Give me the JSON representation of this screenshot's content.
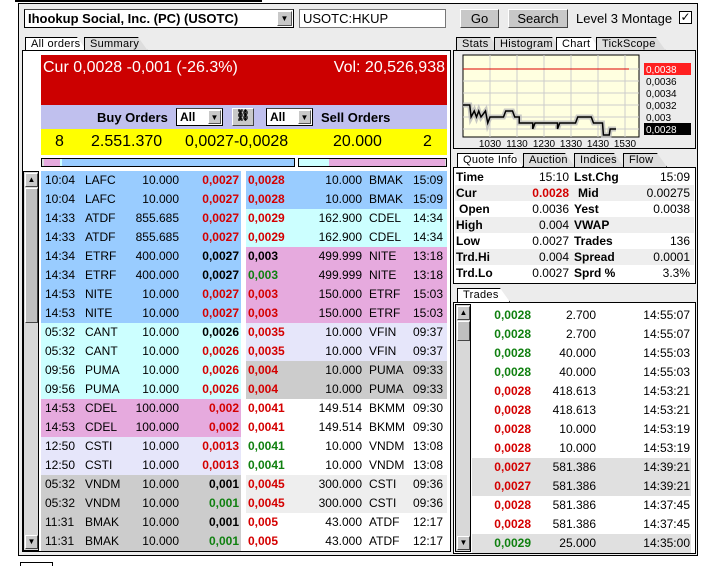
{
  "symbol_select": {
    "value": "Ihookup Social, Inc. (PC) (USOTC)"
  },
  "symbol_input": {
    "value": "USOTC:HKUP"
  },
  "buttons": {
    "go": "Go",
    "search": "Search"
  },
  "level3": {
    "label": "Level 3 Montage",
    "checked": true
  },
  "left_tabs": [
    "All orders",
    "Summary"
  ],
  "header": {
    "cur": "Cur 0,0028 -0,001 (-26.3%)",
    "vol": "Vol: 20,526,938"
  },
  "filters": {
    "buy_label": "Buy Orders",
    "buy_value": "All",
    "sell_value": "All",
    "sell_label": "Sell Orders",
    "link_icon": "chain-link-icon"
  },
  "summary": {
    "buy_count": "8",
    "buy_size": "2.551.370",
    "bid_ask": "0,0027-0,0028",
    "sell_size": "20.000",
    "sell_count": "2"
  },
  "colors": {
    "blue": "#99ccff",
    "cyan": "#ccffff",
    "pink": "#e6aade",
    "lavender": "#e6e6fa",
    "gray": "#cccccc",
    "lightgray": "#eeeeee",
    "white": "#ffffff",
    "red": "#d40000",
    "green": "#108010",
    "header_red": "#cc0000",
    "yellow": "#ffff00"
  },
  "buy_orders": [
    {
      "time": "10:04",
      "mm": "LAFC",
      "size": "10.000",
      "price": "0,0027",
      "pc": "red",
      "bg": "blue"
    },
    {
      "time": "10:04",
      "mm": "LAFC",
      "size": "10.000",
      "price": "0,0027",
      "pc": "red",
      "bg": "blue"
    },
    {
      "time": "14:33",
      "mm": "ATDF",
      "size": "855.685",
      "price": "0,0027",
      "pc": "red",
      "bg": "blue"
    },
    {
      "time": "14:33",
      "mm": "ATDF",
      "size": "855.685",
      "price": "0,0027",
      "pc": "red",
      "bg": "blue"
    },
    {
      "time": "14:34",
      "mm": "ETRF",
      "size": "400.000",
      "price": "0,0027",
      "pc": "blk",
      "bg": "blue"
    },
    {
      "time": "14:34",
      "mm": "ETRF",
      "size": "400.000",
      "price": "0,0027",
      "pc": "blk",
      "bg": "blue"
    },
    {
      "time": "14:53",
      "mm": "NITE",
      "size": "10.000",
      "price": "0,0027",
      "pc": "red",
      "bg": "blue"
    },
    {
      "time": "14:53",
      "mm": "NITE",
      "size": "10.000",
      "price": "0,0027",
      "pc": "red",
      "bg": "blue"
    },
    {
      "time": "05:32",
      "mm": "CANT",
      "size": "10.000",
      "price": "0,0026",
      "pc": "blk",
      "bg": "cyan"
    },
    {
      "time": "05:32",
      "mm": "CANT",
      "size": "10.000",
      "price": "0,0026",
      "pc": "red",
      "bg": "cyan"
    },
    {
      "time": "09:56",
      "mm": "PUMA",
      "size": "10.000",
      "price": "0,0026",
      "pc": "red",
      "bg": "cyan"
    },
    {
      "time": "09:56",
      "mm": "PUMA",
      "size": "10.000",
      "price": "0,0026",
      "pc": "red",
      "bg": "cyan"
    },
    {
      "time": "14:53",
      "mm": "CDEL",
      "size": "100.000",
      "price": "0,002",
      "pc": "red",
      "bg": "pink"
    },
    {
      "time": "14:53",
      "mm": "CDEL",
      "size": "100.000",
      "price": "0,002",
      "pc": "red",
      "bg": "pink"
    },
    {
      "time": "12:50",
      "mm": "CSTI",
      "size": "10.000",
      "price": "0,0013",
      "pc": "red",
      "bg": "lavender"
    },
    {
      "time": "12:50",
      "mm": "CSTI",
      "size": "10.000",
      "price": "0,0013",
      "pc": "red",
      "bg": "lavender"
    },
    {
      "time": "05:32",
      "mm": "VNDM",
      "size": "10.000",
      "price": "0,001",
      "pc": "blk",
      "bg": "gray"
    },
    {
      "time": "05:32",
      "mm": "VNDM",
      "size": "10.000",
      "price": "0,001",
      "pc": "grn",
      "bg": "gray"
    },
    {
      "time": "11:31",
      "mm": "BMAK",
      "size": "10.000",
      "price": "0,001",
      "pc": "blk",
      "bg": "gray"
    },
    {
      "time": "11:31",
      "mm": "BMAK",
      "size": "10.000",
      "price": "0,001",
      "pc": "grn",
      "bg": "gray"
    }
  ],
  "sell_orders": [
    {
      "price": "0,0028",
      "pc": "red",
      "size": "10.000",
      "mm": "BMAK",
      "time": "15:09",
      "bg": "blue"
    },
    {
      "price": "0,0028",
      "pc": "red",
      "size": "10.000",
      "mm": "BMAK",
      "time": "15:09",
      "bg": "blue"
    },
    {
      "price": "0,0029",
      "pc": "red",
      "size": "162.900",
      "mm": "CDEL",
      "time": "14:34",
      "bg": "cyan"
    },
    {
      "price": "0,0029",
      "pc": "red",
      "size": "162.900",
      "mm": "CDEL",
      "time": "14:34",
      "bg": "cyan"
    },
    {
      "price": "0,003",
      "pc": "blk",
      "size": "499.999",
      "mm": "NITE",
      "time": "13:18",
      "bg": "pink"
    },
    {
      "price": "0,003",
      "pc": "grn",
      "size": "499.999",
      "mm": "NITE",
      "time": "13:18",
      "bg": "pink"
    },
    {
      "price": "0,003",
      "pc": "red",
      "size": "150.000",
      "mm": "ETRF",
      "time": "15:03",
      "bg": "pink"
    },
    {
      "price": "0,003",
      "pc": "red",
      "size": "150.000",
      "mm": "ETRF",
      "time": "15:03",
      "bg": "pink"
    },
    {
      "price": "0,0035",
      "pc": "red",
      "size": "10.000",
      "mm": "VFIN",
      "time": "09:37",
      "bg": "lavender"
    },
    {
      "price": "0,0035",
      "pc": "red",
      "size": "10.000",
      "mm": "VFIN",
      "time": "09:37",
      "bg": "lavender"
    },
    {
      "price": "0,004",
      "pc": "red",
      "size": "10.000",
      "mm": "PUMA",
      "time": "09:33",
      "bg": "gray"
    },
    {
      "price": "0,004",
      "pc": "red",
      "size": "10.000",
      "mm": "PUMA",
      "time": "09:33",
      "bg": "gray"
    },
    {
      "price": "0,0041",
      "pc": "red",
      "size": "149.514",
      "mm": "BKMM",
      "time": "09:30",
      "bg": "white"
    },
    {
      "price": "0,0041",
      "pc": "red",
      "size": "149.514",
      "mm": "BKMM",
      "time": "09:30",
      "bg": "white"
    },
    {
      "price": "0,0041",
      "pc": "grn",
      "size": "10.000",
      "mm": "VNDM",
      "time": "13:08",
      "bg": "white"
    },
    {
      "price": "0,0041",
      "pc": "grn",
      "size": "10.000",
      "mm": "VNDM",
      "time": "13:08",
      "bg": "white"
    },
    {
      "price": "0,0045",
      "pc": "red",
      "size": "300.000",
      "mm": "CSTI",
      "time": "09:36",
      "bg": "lightgray"
    },
    {
      "price": "0,0045",
      "pc": "red",
      "size": "300.000",
      "mm": "CSTI",
      "time": "09:36",
      "bg": "lightgray"
    },
    {
      "price": "0,005",
      "pc": "red",
      "size": "43.000",
      "mm": "ATDF",
      "time": "12:17",
      "bg": "white"
    },
    {
      "price": "0,005",
      "pc": "red",
      "size": "43.000",
      "mm": "ATDF",
      "time": "12:17",
      "bg": "white"
    }
  ],
  "right_tabs": [
    "Stats",
    "Histogram",
    "Chart",
    "TickScope"
  ],
  "chart": {
    "y_labels": [
      "0,0038",
      "0,0036",
      "0,0034",
      "0,0032",
      "0,003",
      "0,0028"
    ],
    "x_labels": [
      "1030",
      "1130",
      "1230",
      "1330",
      "1430",
      "1530"
    ],
    "yest_close": 0.0038,
    "current": 0.0028,
    "price_line": [
      [
        "09:30",
        0.0032
      ],
      [
        "09:45",
        0.0032
      ],
      [
        "09:48",
        0.003
      ],
      [
        "09:55",
        0.0031
      ],
      [
        "10:00",
        0.003
      ],
      [
        "10:05",
        0.0031
      ],
      [
        "10:10",
        0.003
      ],
      [
        "10:20",
        0.0031
      ],
      [
        "10:25",
        0.0029
      ],
      [
        "10:30",
        0.003
      ],
      [
        "11:00",
        0.003
      ],
      [
        "11:05",
        0.0031
      ],
      [
        "11:20",
        0.0031
      ],
      [
        "11:25",
        0.003
      ],
      [
        "11:35",
        0.003
      ],
      [
        "11:35",
        0.0029
      ],
      [
        "12:05",
        0.0029
      ],
      [
        "12:05",
        0.0028
      ],
      [
        "12:10",
        0.0029
      ],
      [
        "13:00",
        0.0029
      ],
      [
        "13:00",
        0.0028
      ],
      [
        "13:05",
        0.0029
      ],
      [
        "13:40",
        0.0029
      ],
      [
        "13:45",
        0.003
      ],
      [
        "14:15",
        0.003
      ],
      [
        "14:20",
        0.0029
      ],
      [
        "14:40",
        0.0029
      ],
      [
        "14:42",
        0.0027
      ],
      [
        "14:55",
        0.0027
      ],
      [
        "14:57",
        0.0028
      ],
      [
        "15:10",
        0.0028
      ]
    ]
  },
  "quote_tabs": [
    "Quote Info",
    "Auction",
    "Indices",
    "Flow"
  ],
  "quote": [
    {
      "l1": "Time",
      "v1": "15:10",
      "l2": "Lst.Chg",
      "v2": "15:09"
    },
    {
      "l1": "Cur",
      "v1": "0.0028",
      "l2": "Mid",
      "v2": "0.00275"
    },
    {
      "l1": "Open",
      "v1": "0.0036",
      "l2": "Yest",
      "v2": "0.0038"
    },
    {
      "l1": "High",
      "v1": "0.004",
      "l2": "VWAP",
      "v2": ""
    },
    {
      "l1": "Low",
      "v1": "0.0027",
      "l2": "Trades",
      "v2": "136"
    },
    {
      "l1": "Trd.Hi",
      "v1": "0.004",
      "l2": "Spread",
      "v2": "0.0001"
    },
    {
      "l1": "Trd.Lo",
      "v1": "0.0027",
      "l2": "Sprd %",
      "v2": "3.3%"
    }
  ],
  "trades_tab": "Trades",
  "trades": [
    {
      "price": "0,0028",
      "pc": "grn",
      "size": "2.700",
      "time": "14:55:07",
      "bg": "white"
    },
    {
      "price": "0,0028",
      "pc": "grn",
      "size": "2.700",
      "time": "14:55:07",
      "bg": "white"
    },
    {
      "price": "0,0028",
      "pc": "grn",
      "size": "40.000",
      "time": "14:55:03",
      "bg": "white"
    },
    {
      "price": "0,0028",
      "pc": "grn",
      "size": "40.000",
      "time": "14:55:03",
      "bg": "white"
    },
    {
      "price": "0,0028",
      "pc": "red",
      "size": "418.613",
      "time": "14:53:21",
      "bg": "white"
    },
    {
      "price": "0,0028",
      "pc": "red",
      "size": "418.613",
      "time": "14:53:21",
      "bg": "white"
    },
    {
      "price": "0,0028",
      "pc": "red",
      "size": "10.000",
      "time": "14:53:19",
      "bg": "white"
    },
    {
      "price": "0,0028",
      "pc": "red",
      "size": "10.000",
      "time": "14:53:19",
      "bg": "white"
    },
    {
      "price": "0,0027",
      "pc": "red",
      "size": "581.386",
      "time": "14:39:21",
      "bg": "lightgray2"
    },
    {
      "price": "0,0027",
      "pc": "red",
      "size": "581.386",
      "time": "14:39:21",
      "bg": "lightgray2"
    },
    {
      "price": "0,0028",
      "pc": "red",
      "size": "581.386",
      "time": "14:37:45",
      "bg": "white"
    },
    {
      "price": "0,0028",
      "pc": "red",
      "size": "581.386",
      "time": "14:37:45",
      "bg": "white"
    },
    {
      "price": "0,0029",
      "pc": "grn",
      "size": "25.000",
      "time": "14:35:00",
      "bg": "lightgray2"
    }
  ]
}
